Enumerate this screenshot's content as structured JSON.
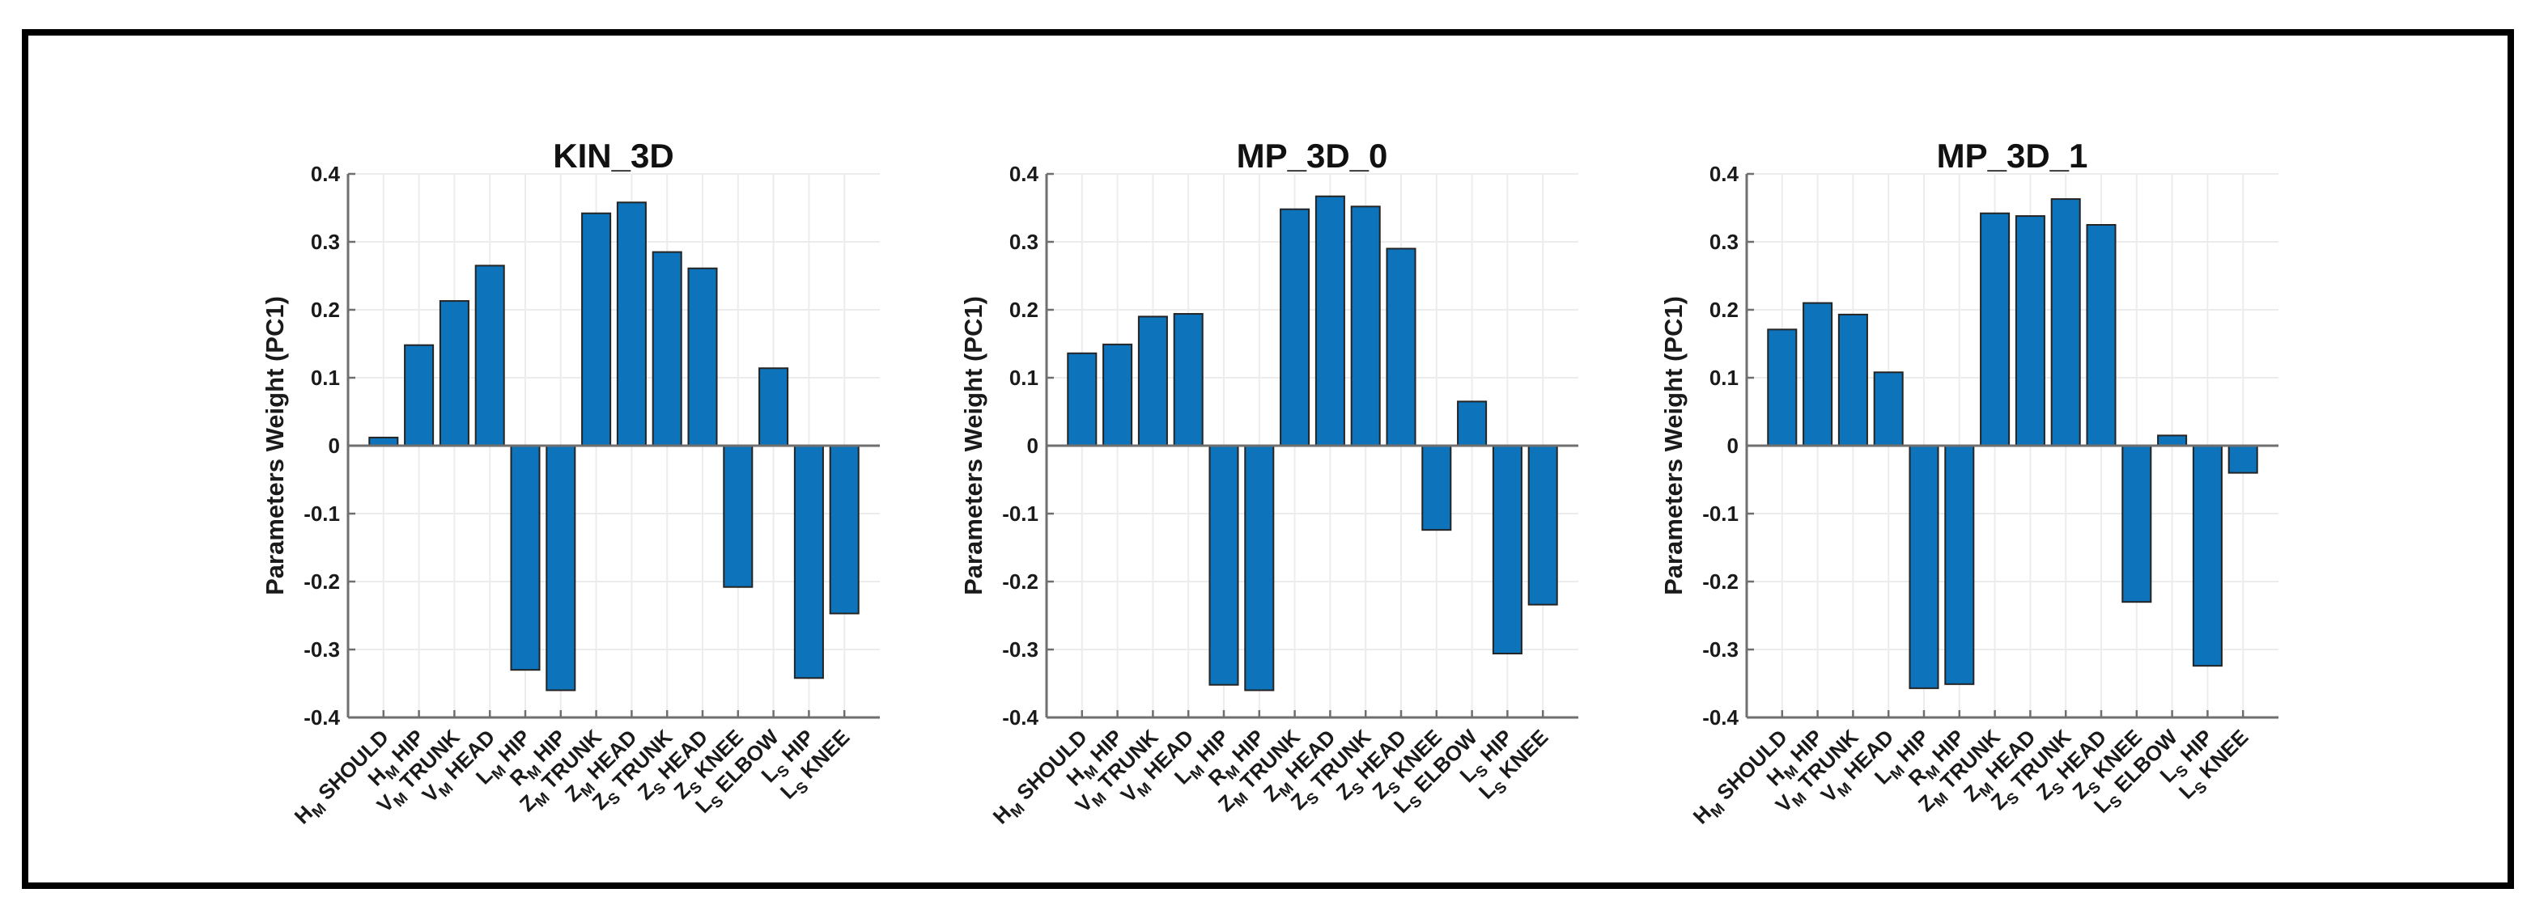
{
  "figure": {
    "background": "#ffffff",
    "border_color": "#000000",
    "axis_color": "#6f6f6f",
    "grid_color": "#ececec",
    "text_color": "#1a1a1a"
  },
  "chart_data": [
    {
      "type": "bar",
      "title": "KIN_3D",
      "xlabel": "",
      "ylabel": "Parameters Weight (PC1)",
      "ylim": [
        -0.4,
        0.4
      ],
      "ytick_step": 0.1,
      "grid": true,
      "legend": "none",
      "bar_color": "#0d73ba",
      "bar_edge_color": "#242424",
      "categories": [
        "H_M SHOULD",
        "H_M HIP",
        "V_M TRUNK",
        "V_M HEAD",
        "L_M HIP",
        "R_M HIP",
        "Z_M TRUNK",
        "Z_M HEAD",
        "Z_S TRUNK",
        "Z_S HEAD",
        "Z_S KNEE",
        "L_S ELBOW",
        "L_S HIP",
        "L_S KNEE"
      ],
      "values": [
        0.012,
        0.148,
        0.213,
        0.265,
        -0.33,
        -0.36,
        0.342,
        0.358,
        0.285,
        0.261,
        -0.208,
        0.114,
        -0.342,
        -0.247
      ]
    },
    {
      "type": "bar",
      "title": "MP_3D_0",
      "xlabel": "",
      "ylabel": "Parameters Weight (PC1)",
      "ylim": [
        -0.4,
        0.4
      ],
      "ytick_step": 0.1,
      "grid": true,
      "legend": "none",
      "bar_color": "#0d73ba",
      "bar_edge_color": "#242424",
      "categories": [
        "H_M SHOULD",
        "H_M HIP",
        "V_M TRUNK",
        "V_M HEAD",
        "L_M HIP",
        "R_M HIP",
        "Z_M TRUNK",
        "Z_M HEAD",
        "Z_S TRUNK",
        "Z_S HEAD",
        "Z_S KNEE",
        "L_S ELBOW",
        "L_S HIP",
        "L_S KNEE"
      ],
      "values": [
        0.136,
        0.149,
        0.19,
        0.194,
        -0.352,
        -0.36,
        0.348,
        0.367,
        0.352,
        0.29,
        -0.124,
        0.065,
        -0.306,
        -0.234
      ]
    },
    {
      "type": "bar",
      "title": "MP_3D_1",
      "xlabel": "",
      "ylabel": "Parameters Weight (PC1)",
      "ylim": [
        -0.4,
        0.4
      ],
      "ytick_step": 0.1,
      "grid": true,
      "legend": "none",
      "bar_color": "#0d73ba",
      "bar_edge_color": "#242424",
      "categories": [
        "H_M SHOULD",
        "H_M HIP",
        "V_M TRUNK",
        "V_M HEAD",
        "L_M HIP",
        "R_M HIP",
        "Z_M TRUNK",
        "Z_M HEAD",
        "Z_S TRUNK",
        "Z_S HEAD",
        "Z_S KNEE",
        "L_S ELBOW",
        "L_S HIP",
        "L_S KNEE"
      ],
      "values": [
        0.171,
        0.21,
        0.193,
        0.108,
        -0.357,
        -0.351,
        0.342,
        0.338,
        0.363,
        0.325,
        -0.23,
        0.015,
        -0.324,
        -0.04
      ]
    }
  ]
}
